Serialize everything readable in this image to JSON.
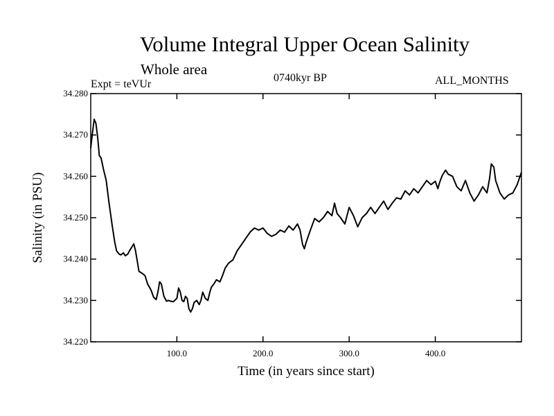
{
  "chart_data": {
    "type": "line",
    "title": "Volume Integral Upper Ocean Salinity",
    "subtitle": "Whole area",
    "experiment_label": "Expt = teVUr",
    "period_label": "0740kyr BP",
    "months_label": "ALL_MONTHS",
    "xlabel": "Time (in years since start)",
    "ylabel": "Salinity (in PSU)",
    "xlim": [
      0,
      500
    ],
    "ylim": [
      34.22,
      34.28
    ],
    "x_ticks": [
      100,
      200,
      300,
      400
    ],
    "x_tick_labels": [
      "100.0",
      "200.0",
      "300.0",
      "400.0"
    ],
    "y_ticks": [
      34.22,
      34.23,
      34.24,
      34.25,
      34.26,
      34.27,
      34.28
    ],
    "y_tick_labels": [
      "34.220",
      "34.230",
      "34.240",
      "34.250",
      "34.260",
      "34.270",
      "34.280"
    ],
    "grid": false,
    "line_color": "#000000",
    "series": [
      {
        "x": [
          0,
          2,
          4,
          6,
          8,
          10,
          12,
          15,
          18,
          21,
          25,
          28,
          30,
          33,
          35,
          38,
          40,
          43,
          45,
          48,
          50,
          52,
          54,
          56,
          58,
          60,
          63,
          66,
          70,
          73,
          76,
          78,
          80,
          82,
          85,
          88,
          90,
          93,
          96,
          100,
          102,
          104,
          106,
          108,
          110,
          112,
          114,
          116,
          118,
          120,
          123,
          126,
          128,
          130,
          133,
          136,
          138,
          140,
          143,
          146,
          150,
          153,
          156,
          160,
          165,
          170,
          175,
          180,
          185,
          190,
          195,
          200,
          205,
          210,
          215,
          220,
          225,
          230,
          235,
          240,
          243,
          246,
          248,
          250,
          255,
          260,
          265,
          270,
          275,
          280,
          283,
          286,
          290,
          295,
          300,
          305,
          310,
          315,
          320,
          325,
          330,
          335,
          340,
          345,
          350,
          355,
          360,
          365,
          370,
          375,
          380,
          385,
          390,
          395,
          400,
          403,
          405,
          408,
          412,
          415,
          420,
          425,
          430,
          435,
          440,
          445,
          450,
          455,
          460,
          463,
          465,
          468,
          470,
          475,
          480,
          485,
          490,
          495,
          500
        ],
        "y": [
          34.2668,
          34.2705,
          34.2738,
          34.2728,
          34.2695,
          34.265,
          34.2645,
          34.2615,
          34.259,
          34.254,
          34.248,
          34.244,
          34.242,
          34.2412,
          34.241,
          34.2415,
          34.2408,
          34.2412,
          34.242,
          34.243,
          34.2437,
          34.242,
          34.2395,
          34.237,
          34.2368,
          34.2365,
          34.236,
          34.234,
          34.2325,
          34.2308,
          34.2302,
          34.232,
          34.2345,
          34.234,
          34.231,
          34.2298,
          34.23,
          34.2298,
          34.2297,
          34.2305,
          34.233,
          34.232,
          34.23,
          34.2297,
          34.231,
          34.2305,
          34.228,
          34.2272,
          34.228,
          34.2295,
          34.23,
          34.229,
          34.23,
          34.232,
          34.2305,
          34.23,
          34.2318,
          34.2332,
          34.234,
          34.235,
          34.2345,
          34.236,
          34.2378,
          34.239,
          34.2398,
          34.242,
          34.2435,
          34.245,
          34.2465,
          34.2475,
          34.247,
          34.2475,
          34.2462,
          34.2455,
          34.246,
          34.247,
          34.2465,
          34.248,
          34.247,
          34.2485,
          34.247,
          34.2435,
          34.2425,
          34.244,
          34.247,
          34.2498,
          34.249,
          34.25,
          34.2515,
          34.2505,
          34.2535,
          34.251,
          34.25,
          34.2485,
          34.2525,
          34.2505,
          34.2478,
          34.25,
          34.251,
          34.2525,
          34.251,
          34.2525,
          34.254,
          34.252,
          34.2535,
          34.2548,
          34.2545,
          34.2565,
          34.2555,
          34.257,
          34.256,
          34.2575,
          34.259,
          34.258,
          34.2588,
          34.257,
          34.2585,
          34.2602,
          34.2615,
          34.2605,
          34.26,
          34.2575,
          34.2565,
          34.259,
          34.256,
          34.254,
          34.2555,
          34.2575,
          34.256,
          34.2595,
          34.263,
          34.2622,
          34.259,
          34.256,
          34.2545,
          34.2555,
          34.256,
          34.258,
          34.261
        ]
      }
    ]
  }
}
